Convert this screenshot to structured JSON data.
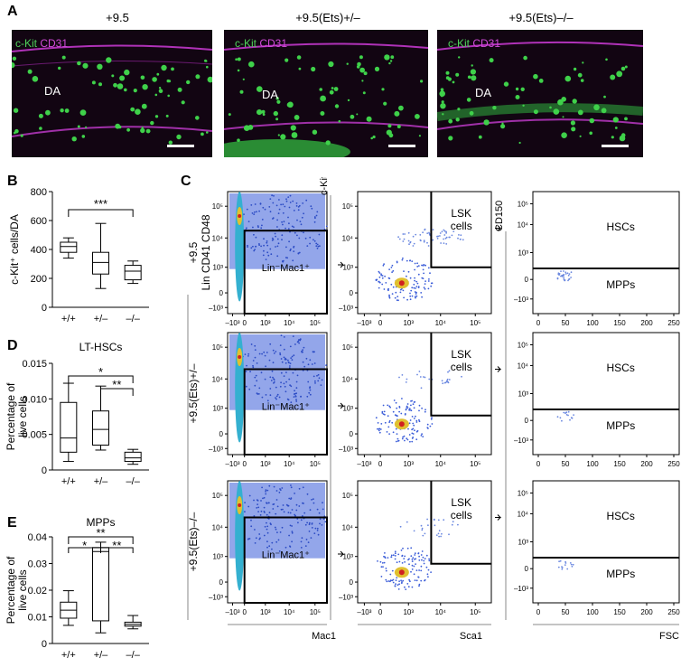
{
  "panel_a": {
    "letter": "A",
    "images": [
      {
        "title": "+9.5",
        "stain_green": "c-Kit",
        "stain_magenta": "CD31",
        "vessel_label": "DA"
      },
      {
        "title": "+9.5(Ets)+/–",
        "stain_green": "c-Kit",
        "stain_magenta": "CD31",
        "vessel_label": "DA"
      },
      {
        "title": "+9.5(Ets)–/–",
        "stain_green": "c-Kit",
        "stain_magenta": "CD31",
        "vessel_label": "DA"
      }
    ]
  },
  "panel_b": {
    "letter": "B",
    "sig": "***"
  },
  "panel_c": {
    "letter": "C",
    "row_labels": [
      "+9.5",
      "+9.5(Ets)+/–",
      "+9.5(Ets)–/–"
    ],
    "gate1_ylabel": "Lin CD41 CD48",
    "gate1_xlabel": "Mac1",
    "gate1_label": "Lin⁻Mac1⁺",
    "gate2_ylabel": "c-Kit",
    "gate2_xlabel": "Sca1",
    "gate2_label_line1": "LSK",
    "gate2_label_line2": "cells",
    "gate3_ylabel": "CD150",
    "gate3_xlabel": "FSC",
    "gate3_upper": "HSCs",
    "gate3_lower": "MPPs",
    "log_ticks": [
      "–10³",
      "0",
      "10³",
      "10⁴",
      "10⁵"
    ],
    "fsc_ticks": [
      "0",
      "50",
      "100",
      "150",
      "200",
      "250"
    ]
  },
  "panel_d": {
    "letter": "D",
    "sigs": [
      "*",
      "**"
    ]
  },
  "panel_e": {
    "letter": "E",
    "sigs": [
      "**",
      "*",
      "**"
    ]
  },
  "chart_data": [
    {
      "type": "box",
      "title": "",
      "xlabel": "",
      "ylabel": "c-Kit⁺ cells/DA",
      "categories": [
        "+/+",
        "+/–",
        "–/–"
      ],
      "ylim": [
        0,
        800
      ],
      "yticks": [
        0,
        200,
        400,
        600,
        800
      ],
      "boxes": [
        {
          "min": 340,
          "q1": 380,
          "median": 420,
          "q3": 450,
          "max": 480
        },
        {
          "min": 130,
          "q1": 230,
          "median": 310,
          "q3": 380,
          "max": 580
        },
        {
          "min": 165,
          "q1": 190,
          "median": 250,
          "q3": 290,
          "max": 320
        }
      ]
    },
    {
      "type": "box",
      "title": "LT-HSCs",
      "xlabel": "",
      "ylabel": "Percentage of live cells",
      "categories": [
        "+/+",
        "+/–",
        "–/–"
      ],
      "ylim": [
        0,
        0.015
      ],
      "yticks": [
        0,
        0.005,
        0.01,
        0.015
      ],
      "ytick_labels": [
        "0",
        "0.005",
        "0.010",
        "0.015"
      ],
      "boxes": [
        {
          "min": 0.0012,
          "q1": 0.0025,
          "median": 0.0045,
          "q3": 0.0095,
          "max": 0.0122
        },
        {
          "min": 0.0028,
          "q1": 0.0035,
          "median": 0.0057,
          "q3": 0.0083,
          "max": 0.0118
        },
        {
          "min": 0.0008,
          "q1": 0.0012,
          "median": 0.0017,
          "q3": 0.0025,
          "max": 0.0029
        }
      ]
    },
    {
      "type": "box",
      "title": "MPPs",
      "xlabel": "",
      "ylabel": "Percentage of live cells",
      "categories": [
        "+/+",
        "+/–",
        "–/–"
      ],
      "ylim": [
        0,
        0.04
      ],
      "yticks": [
        0,
        0.01,
        0.02,
        0.03,
        0.04
      ],
      "ytick_labels": [
        "0",
        "0.01",
        "0.02",
        "0.03",
        "0.04"
      ],
      "boxes": [
        {
          "min": 0.0068,
          "q1": 0.0095,
          "median": 0.0125,
          "q3": 0.0155,
          "max": 0.0198
        },
        {
          "min": 0.004,
          "q1": 0.0085,
          "median": 0.0345,
          "q3": 0.036,
          "max": 0.038
        },
        {
          "min": 0.0055,
          "q1": 0.0065,
          "median": 0.0072,
          "q3": 0.008,
          "max": 0.0105
        }
      ]
    }
  ]
}
